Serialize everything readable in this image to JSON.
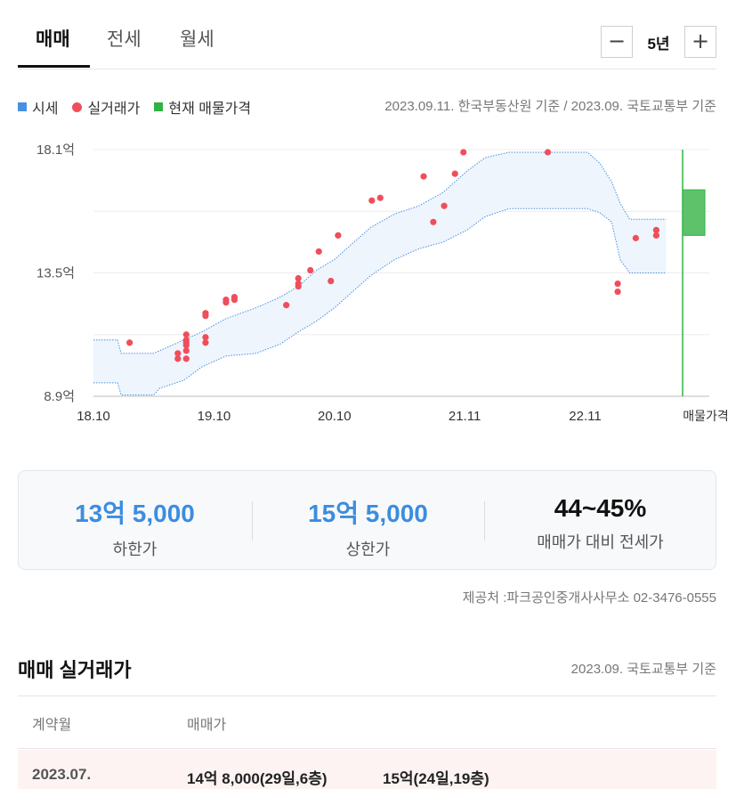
{
  "tabs": [
    {
      "label": "매매",
      "active": true
    },
    {
      "label": "전세",
      "active": false
    },
    {
      "label": "월세",
      "active": false
    }
  ],
  "period": {
    "minus": "−",
    "value": "5년",
    "plus": "+"
  },
  "legend": {
    "items": [
      {
        "label": "시세",
        "color": "#4a90e2"
      },
      {
        "label": "실거래가",
        "color": "#f04e5a"
      },
      {
        "label": "현재 매물가격",
        "color": "#2fb344"
      }
    ]
  },
  "source_note": "2023.09.11. 한국부동산원 기준 / 2023.09. 국토교통부 기준",
  "chart_data": {
    "type": "scatter",
    "x_ticks": [
      "18.10",
      "19.10",
      "20.10",
      "21.11",
      "22.11",
      "매물가격"
    ],
    "y_ticks": [
      "18.1억",
      "13.5억",
      "8.9억"
    ],
    "y_range": [
      8.9,
      18.1
    ],
    "x_range": [
      2018.75,
      2023.55
    ],
    "series": [
      {
        "name": "시세",
        "type": "band",
        "color": "#4a90e2",
        "lower": [
          [
            2018.75,
            9.4
          ],
          [
            2018.95,
            9.4
          ],
          [
            2018.98,
            8.95
          ],
          [
            2019.25,
            8.95
          ],
          [
            2019.3,
            9.2
          ],
          [
            2019.5,
            9.5
          ],
          [
            2019.65,
            10.0
          ],
          [
            2019.85,
            10.4
          ],
          [
            2020.1,
            10.5
          ],
          [
            2020.3,
            10.85
          ],
          [
            2020.45,
            11.3
          ],
          [
            2020.6,
            11.7
          ],
          [
            2020.75,
            12.2
          ],
          [
            2020.9,
            12.8
          ],
          [
            2021.05,
            13.4
          ],
          [
            2021.25,
            14.0
          ],
          [
            2021.45,
            14.4
          ],
          [
            2021.65,
            14.65
          ],
          [
            2021.85,
            15.1
          ],
          [
            2022.0,
            15.6
          ],
          [
            2022.2,
            15.9
          ],
          [
            2022.6,
            15.9
          ],
          [
            2022.85,
            15.9
          ],
          [
            2022.95,
            15.75
          ],
          [
            2023.05,
            15.4
          ],
          [
            2023.12,
            14.0
          ],
          [
            2023.2,
            13.5
          ],
          [
            2023.5,
            13.5
          ]
        ],
        "upper": [
          [
            2018.75,
            11.0
          ],
          [
            2018.95,
            11.0
          ],
          [
            2018.98,
            10.5
          ],
          [
            2019.25,
            10.5
          ],
          [
            2019.35,
            10.7
          ],
          [
            2019.5,
            11.0
          ],
          [
            2019.65,
            11.3
          ],
          [
            2019.85,
            11.8
          ],
          [
            2020.1,
            12.2
          ],
          [
            2020.3,
            12.6
          ],
          [
            2020.45,
            13.0
          ],
          [
            2020.6,
            13.6
          ],
          [
            2020.75,
            14.0
          ],
          [
            2020.9,
            14.6
          ],
          [
            2021.05,
            15.2
          ],
          [
            2021.25,
            15.7
          ],
          [
            2021.45,
            16.0
          ],
          [
            2021.65,
            16.5
          ],
          [
            2021.85,
            17.3
          ],
          [
            2022.0,
            17.8
          ],
          [
            2022.2,
            18.0
          ],
          [
            2022.85,
            18.0
          ],
          [
            2022.95,
            17.6
          ],
          [
            2023.05,
            16.9
          ],
          [
            2023.12,
            16.1
          ],
          [
            2023.2,
            15.5
          ],
          [
            2023.5,
            15.5
          ]
        ]
      },
      {
        "name": "실거래가",
        "type": "scatter",
        "color": "#f04e5a",
        "points": [
          [
            2019.05,
            10.9
          ],
          [
            2019.45,
            10.5
          ],
          [
            2019.45,
            10.3
          ],
          [
            2019.52,
            11.2
          ],
          [
            2019.52,
            11.0
          ],
          [
            2019.52,
            10.9
          ],
          [
            2019.52,
            10.8
          ],
          [
            2019.52,
            10.6
          ],
          [
            2019.52,
            10.3
          ],
          [
            2019.68,
            11.1
          ],
          [
            2019.68,
            10.9
          ],
          [
            2019.68,
            12.0
          ],
          [
            2019.68,
            11.9
          ],
          [
            2019.85,
            12.5
          ],
          [
            2019.85,
            12.4
          ],
          [
            2019.92,
            12.6
          ],
          [
            2019.92,
            12.5
          ],
          [
            2020.35,
            12.3
          ],
          [
            2020.45,
            13.3
          ],
          [
            2020.45,
            13.1
          ],
          [
            2020.45,
            13.0
          ],
          [
            2020.55,
            13.6
          ],
          [
            2020.62,
            14.3
          ],
          [
            2020.72,
            13.2
          ],
          [
            2020.78,
            14.9
          ],
          [
            2021.06,
            16.2
          ],
          [
            2021.13,
            16.3
          ],
          [
            2021.49,
            17.1
          ],
          [
            2021.57,
            15.4
          ],
          [
            2021.66,
            16.0
          ],
          [
            2021.75,
            17.2
          ],
          [
            2021.82,
            18.0
          ],
          [
            2022.52,
            18.0
          ],
          [
            2023.1,
            13.1
          ],
          [
            2023.1,
            12.8
          ],
          [
            2023.25,
            14.8
          ],
          [
            2023.42,
            14.9
          ],
          [
            2023.42,
            15.1
          ]
        ]
      },
      {
        "name": "현재 매물가격",
        "type": "range",
        "color": "#2fb344",
        "min": 14.9,
        "max": 16.6
      }
    ]
  },
  "summary": [
    {
      "value": "13억 5,000",
      "label": "하한가",
      "color": "#3b8de0"
    },
    {
      "value": "15억 5,000",
      "label": "상한가",
      "color": "#3b8de0"
    },
    {
      "value": "44~45%",
      "label": "매매가 대비 전세가",
      "color": "#111111"
    }
  ],
  "provider": "제공처 :파크공인중개사사무소 02-3476-0555",
  "transactions": {
    "title": "매매 실거래가",
    "source": "2023.09. 국토교통부 기준",
    "headers": [
      "계약월",
      "매매가"
    ],
    "rows": [
      {
        "month": "2023.07.",
        "deal1": "14억 8,000(29일,6층)",
        "deal2": "15억(24일,19층)"
      }
    ]
  }
}
